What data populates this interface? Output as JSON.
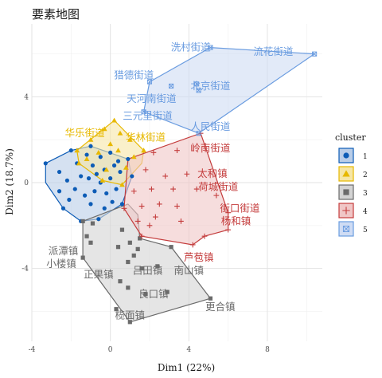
{
  "chart_data": {
    "type": "scatter",
    "title": "要素地图",
    "xlabel": "Dim1 (22%)",
    "ylabel": "Dim2 (18.7%)",
    "xlim": [
      -4,
      10.8
    ],
    "ylim": [
      -7.4,
      7.4
    ],
    "x_ticks": [
      -4,
      0,
      4,
      8
    ],
    "y_ticks": [
      -4,
      0,
      4
    ],
    "grid": true,
    "legend": {
      "title": "cluster",
      "placement": "right",
      "labels": [
        "1",
        "2",
        "3",
        "4",
        "5"
      ]
    },
    "series": [
      {
        "name": "1",
        "color": "#0d5cb6",
        "marker": "circle",
        "hull": [
          [
            -3.3,
            0.9
          ],
          [
            -2.0,
            1.5
          ],
          [
            -1.0,
            1.7
          ],
          [
            0.9,
            1.1
          ],
          [
            1.1,
            0.3
          ],
          [
            0.6,
            -1.0
          ],
          [
            -0.6,
            -1.7
          ],
          [
            -1.5,
            -1.8
          ],
          [
            -2.4,
            -1.2
          ],
          [
            -3.3,
            0
          ]
        ],
        "points": [
          [
            -3.3,
            0.9
          ],
          [
            -2.6,
            0.5
          ],
          [
            -2.2,
            0.1
          ],
          [
            -2.6,
            -0.4
          ],
          [
            -2.4,
            -1.2
          ],
          [
            -2.0,
            1.5
          ],
          [
            -1.7,
            0.9
          ],
          [
            -1.5,
            0.3
          ],
          [
            -1.8,
            -0.3
          ],
          [
            -1.3,
            -0.6
          ],
          [
            -1.5,
            -1.8
          ],
          [
            -1.0,
            1.7
          ],
          [
            -0.9,
            0.8
          ],
          [
            -1.1,
            0.2
          ],
          [
            -0.8,
            -0.4
          ],
          [
            -1.0,
            -1.0
          ],
          [
            -0.6,
            -1.7
          ],
          [
            -0.5,
            1.2
          ],
          [
            -0.3,
            0.6
          ],
          [
            -0.5,
            0
          ],
          [
            -0.2,
            -0.5
          ],
          [
            -0.3,
            -1.2
          ],
          [
            0,
            1.4
          ],
          [
            0.2,
            0.8
          ],
          [
            0,
            0.2
          ],
          [
            0.3,
            -0.3
          ],
          [
            0.1,
            -0.9
          ],
          [
            0.6,
            -1.0
          ],
          [
            0.5,
            0.5
          ],
          [
            0.9,
            1.1
          ],
          [
            1.1,
            0.3
          ],
          [
            -2.1,
            -0.8
          ],
          [
            -1.2,
            1.3
          ],
          [
            -0.7,
            0.4
          ],
          [
            0.4,
            1.0
          ]
        ]
      },
      {
        "name": "2",
        "color": "#e7b800",
        "marker": "triangle",
        "hull": [
          [
            -1.7,
            1.5
          ],
          [
            0.2,
            2.9
          ],
          [
            1.7,
            1.5
          ],
          [
            1.6,
            0.9
          ],
          [
            0.6,
            -0.1
          ],
          [
            -0.4,
            0.1
          ],
          [
            -1.6,
            0.9
          ]
        ],
        "points": [
          [
            0.2,
            2.9
          ],
          [
            -0.3,
            2.5
          ],
          [
            0.5,
            2.3
          ],
          [
            -1.0,
            2.0
          ],
          [
            1.0,
            2.0
          ],
          [
            1.7,
            1.5
          ],
          [
            -1.7,
            1.5
          ],
          [
            0,
            1.8
          ],
          [
            1.2,
            1.2
          ],
          [
            -1.2,
            1.1
          ],
          [
            -0.6,
            1.4
          ],
          [
            0.4,
            1.5
          ],
          [
            0.8,
            0.7
          ],
          [
            -0.2,
            0.6
          ],
          [
            0.6,
            -0.1
          ],
          [
            -0.4,
            0.1
          ],
          [
            -1.6,
            0.9
          ]
        ]
      },
      {
        "name": "3",
        "color": "#6b6b6b",
        "marker": "square",
        "hull": [
          [
            -1.4,
            -1.8
          ],
          [
            0.9,
            -1.0
          ],
          [
            1.4,
            -1.5
          ],
          [
            1.5,
            -2.6
          ],
          [
            3.1,
            -3.0
          ],
          [
            5.1,
            -5.4
          ],
          [
            1.0,
            -6.5
          ],
          [
            -1.4,
            -3.5
          ]
        ],
        "points": [
          [
            -1.4,
            -1.8
          ],
          [
            -1.2,
            -2.5
          ],
          [
            -0.9,
            -1.9
          ],
          [
            -1.0,
            -2.8
          ],
          [
            -1.4,
            -3.5
          ],
          [
            0.6,
            -2.2
          ],
          [
            1.0,
            -2.8
          ],
          [
            1.5,
            -2.6
          ],
          [
            1.2,
            -3.4
          ],
          [
            0.4,
            -3.0
          ],
          [
            0.9,
            -3.7
          ],
          [
            1.6,
            -4.0
          ],
          [
            3.1,
            -3.0
          ],
          [
            2.4,
            -3.9
          ],
          [
            2.9,
            -5.1
          ],
          [
            5.1,
            -5.4
          ],
          [
            1.8,
            -5.2
          ],
          [
            1.0,
            -6.5
          ],
          [
            0.3,
            -5.9
          ],
          [
            0.5,
            -4.6
          ],
          [
            0.9,
            -4.9
          ],
          [
            1.4,
            -3.1
          ]
        ]
      },
      {
        "name": "4",
        "color": "#c43c3c",
        "marker": "plus",
        "hull": [
          [
            0.9,
            1.1
          ],
          [
            4.6,
            2.3
          ],
          [
            6.0,
            -1.4
          ],
          [
            6.0,
            -2.2
          ],
          [
            4.8,
            -2.5
          ],
          [
            4.2,
            -2.9
          ],
          [
            1.6,
            -2.5
          ],
          [
            0.7,
            -1.2
          ]
        ],
        "points": [
          [
            4.6,
            2.3
          ],
          [
            2.2,
            1.4
          ],
          [
            3.4,
            1.5
          ],
          [
            1.8,
            0.6
          ],
          [
            2.8,
            0.3
          ],
          [
            3.9,
            0.4
          ],
          [
            1.2,
            -0.4
          ],
          [
            2.1,
            -0.3
          ],
          [
            3.2,
            -0.3
          ],
          [
            4.4,
            -0.3
          ],
          [
            5.4,
            -0.6
          ],
          [
            1.6,
            -1.1
          ],
          [
            2.5,
            -1.0
          ],
          [
            3.4,
            -1.1
          ],
          [
            6.0,
            -1.4
          ],
          [
            1.4,
            -1.8
          ],
          [
            2.3,
            -1.6
          ],
          [
            3.6,
            -1.8
          ],
          [
            6.0,
            -2.2
          ],
          [
            1.6,
            -2.5
          ],
          [
            4.8,
            -2.5
          ],
          [
            4.2,
            -2.9
          ],
          [
            0.7,
            -1.2
          ],
          [
            2.0,
            -2.0
          ]
        ]
      },
      {
        "name": "5",
        "color": "#6a9ce0",
        "marker": "boxx",
        "hull": [
          [
            2.0,
            4.7
          ],
          [
            5.1,
            6.3
          ],
          [
            10.4,
            6.0
          ],
          [
            4.5,
            2.3
          ],
          [
            1.7,
            3.3
          ]
        ],
        "points": [
          [
            5.1,
            6.3
          ],
          [
            10.4,
            6.0
          ],
          [
            2.0,
            4.7
          ],
          [
            3.1,
            4.5
          ],
          [
            4.4,
            4.6
          ],
          [
            4.5,
            4.3
          ],
          [
            4.5,
            2.3
          ],
          [
            1.7,
            3.3
          ]
        ]
      }
    ],
    "point_labels": [
      {
        "text": "洗村街道",
        "x": 4.1,
        "y": 6.3,
        "cluster": "5"
      },
      {
        "text": "流花街道",
        "x": 8.3,
        "y": 6.1,
        "cluster": "5"
      },
      {
        "text": "猎德街道",
        "x": 1.2,
        "y": 5.0,
        "cluster": "5"
      },
      {
        "text": "北京街道",
        "x": 5.1,
        "y": 4.5,
        "cluster": "5"
      },
      {
        "text": "天河南街道",
        "x": 2.1,
        "y": 3.9,
        "cluster": "5"
      },
      {
        "text": "三元里街道",
        "x": 1.9,
        "y": 3.1,
        "cluster": "5"
      },
      {
        "text": "人民街道",
        "x": 5.1,
        "y": 2.6,
        "cluster": "5"
      },
      {
        "text": "华乐街道",
        "x": -1.3,
        "y": 2.3,
        "cluster": "2"
      },
      {
        "text": "华林街道",
        "x": 1.8,
        "y": 2.1,
        "cluster": "2"
      },
      {
        "text": "岭南街道",
        "x": 5.1,
        "y": 1.6,
        "cluster": "4"
      },
      {
        "text": "太和镇",
        "x": 5.2,
        "y": 0.4,
        "cluster": "4"
      },
      {
        "text": "荷城街道",
        "x": 5.5,
        "y": -0.2,
        "cluster": "4"
      },
      {
        "text": "街口街道",
        "x": 6.6,
        "y": -1.2,
        "cluster": "4"
      },
      {
        "text": "杨和镇",
        "x": 6.4,
        "y": -1.8,
        "cluster": "4"
      },
      {
        "text": "芦苞镇",
        "x": 4.5,
        "y": -3.5,
        "cluster": "4"
      },
      {
        "text": "派潭镇",
        "x": -2.4,
        "y": -3.2,
        "cluster": "3"
      },
      {
        "text": "小楼镇",
        "x": -2.5,
        "y": -3.8,
        "cluster": "3"
      },
      {
        "text": "正果镇",
        "x": -0.6,
        "y": -4.3,
        "cluster": "3"
      },
      {
        "text": "吕田镇",
        "x": 1.9,
        "y": -4.1,
        "cluster": "3"
      },
      {
        "text": "南山镇",
        "x": 4.0,
        "y": -4.1,
        "cluster": "3"
      },
      {
        "text": "良口镇",
        "x": 2.2,
        "y": -5.2,
        "cluster": "3"
      },
      {
        "text": "更合镇",
        "x": 5.6,
        "y": -5.8,
        "cluster": "3"
      },
      {
        "text": "榄面镇",
        "x": 1.0,
        "y": -6.2,
        "cluster": "3"
      }
    ]
  }
}
